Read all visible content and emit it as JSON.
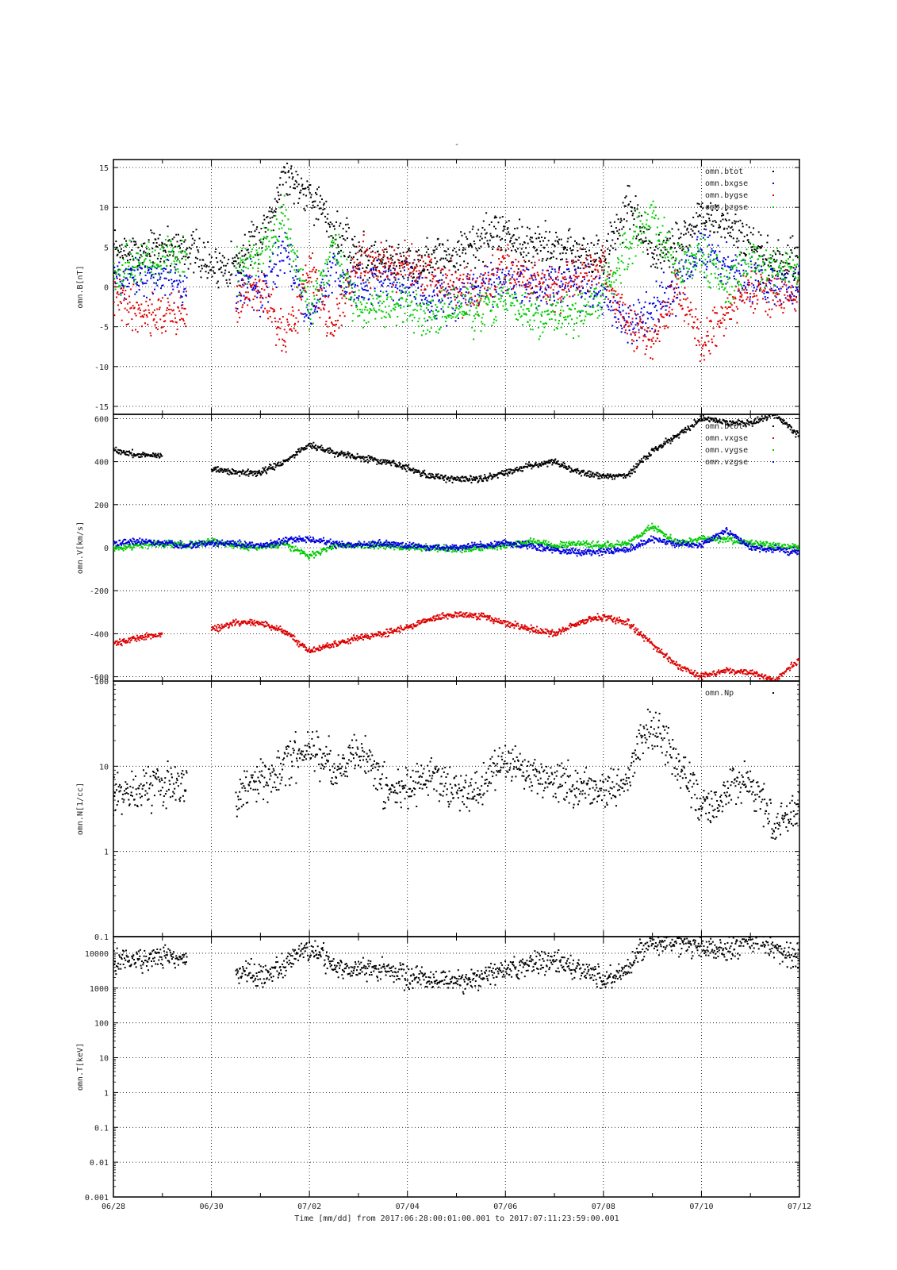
{
  "page_title": "-",
  "x_axis": {
    "tick_labels": [
      "06/28",
      "06/30",
      "07/02",
      "07/04",
      "07/06",
      "07/08",
      "07/10",
      "07/12"
    ],
    "range_days": [
      0,
      14
    ],
    "footer": "Time [mm/dd]  from 2017:06:28:00:01:00.001  to  2017:07:11:23:59:00.001"
  },
  "colors": {
    "black": "#000000",
    "blue": "#0000dd",
    "red": "#dd0000",
    "green": "#00cc00"
  },
  "chart_data": [
    {
      "type": "scatter",
      "ylabel": "omn.B[nT]",
      "ylim": [
        -16,
        16
      ],
      "yticks": [
        -15,
        -10,
        -5,
        0,
        5,
        10,
        15
      ],
      "grid": true,
      "legend_position": "top-right",
      "x": [
        0,
        0.5,
        1,
        1.5,
        2,
        2.5,
        3,
        3.5,
        4,
        4.5,
        5,
        5.5,
        6,
        6.5,
        7,
        7.5,
        8,
        8.5,
        9,
        9.5,
        10,
        10.5,
        11,
        11.5,
        12,
        12.5,
        13,
        13.5,
        14
      ],
      "series": [
        {
          "name": "omn.btot",
          "color": "black",
          "values": [
            4.5,
            4,
            5,
            5,
            2.5,
            3,
            6,
            14,
            12,
            7,
            4,
            3.5,
            3,
            3.5,
            4,
            6,
            7,
            5,
            5,
            4.5,
            3.5,
            10,
            4,
            5,
            9,
            8,
            5,
            3,
            3
          ]
        },
        {
          "name": "omn.bxgse",
          "color": "blue",
          "values": [
            1,
            1.5,
            1,
            0.5,
            null,
            0.5,
            -1,
            5,
            -4,
            2,
            0,
            0.5,
            0.5,
            -1.5,
            -1,
            0,
            1,
            0,
            0.5,
            0,
            -0.5,
            -5,
            -3,
            0,
            5,
            3,
            1,
            0,
            0
          ]
        },
        {
          "name": "omn.bygse",
          "color": "red",
          "values": [
            -1,
            -3,
            -3.5,
            -3,
            null,
            -2,
            0,
            -7,
            2,
            -5,
            3,
            3,
            2.5,
            1,
            0,
            -1,
            3,
            1,
            0,
            1,
            2.5,
            -5,
            -7,
            0,
            -7,
            -3,
            0,
            -1,
            -1
          ]
        },
        {
          "name": "omn.bzgse",
          "color": "green",
          "values": [
            2,
            3,
            3.5,
            3,
            null,
            2,
            4,
            8,
            -3,
            5,
            -3,
            -2.5,
            -2.5,
            -3.5,
            -2.5,
            -3,
            -1,
            -4,
            -3.5,
            -3.5,
            -1,
            5,
            9,
            2,
            4,
            0,
            3,
            2,
            2
          ]
        }
      ]
    },
    {
      "type": "scatter",
      "ylabel": "omn.V[km/s]",
      "ylim": [
        -620,
        620
      ],
      "yticks": [
        -600,
        -400,
        -200,
        0,
        200,
        400,
        600
      ],
      "grid": true,
      "legend_position": "top-right",
      "x": [
        0,
        0.5,
        1,
        1.5,
        2,
        2.5,
        3,
        3.5,
        4,
        4.5,
        5,
        5.5,
        6,
        6.5,
        7,
        7.5,
        8,
        8.5,
        9,
        9.5,
        10,
        10.5,
        11,
        11.5,
        12,
        12.5,
        13,
        13.5,
        14
      ],
      "series": [
        {
          "name": "omn.btot",
          "color": "black",
          "values": [
            455,
            430,
            430,
            null,
            370,
            350,
            350,
            400,
            480,
            440,
            420,
            400,
            370,
            330,
            320,
            320,
            350,
            380,
            400,
            350,
            330,
            340,
            450,
            520,
            600,
            580,
            580,
            620,
            520
          ]
        },
        {
          "name": "omn.vxgse",
          "color": "red",
          "values": [
            -450,
            -420,
            -400,
            null,
            -380,
            -350,
            -350,
            -390,
            -480,
            -450,
            -420,
            -400,
            -370,
            -330,
            -310,
            -320,
            -350,
            -380,
            -400,
            -350,
            -320,
            -350,
            -450,
            -550,
            -600,
            -570,
            -580,
            -620,
            -520
          ]
        },
        {
          "name": "omn.vygse",
          "color": "green",
          "values": [
            0,
            10,
            20,
            10,
            30,
            10,
            0,
            20,
            -40,
            10,
            10,
            10,
            0,
            0,
            -10,
            0,
            10,
            30,
            10,
            20,
            10,
            20,
            100,
            20,
            40,
            40,
            20,
            10,
            0
          ]
        },
        {
          "name": "omn.vzgse",
          "color": "blue",
          "values": [
            20,
            30,
            20,
            10,
            20,
            20,
            10,
            30,
            40,
            20,
            10,
            20,
            10,
            0,
            0,
            10,
            20,
            10,
            -10,
            -20,
            -20,
            -10,
            40,
            20,
            10,
            80,
            0,
            -10,
            -20
          ]
        }
      ]
    },
    {
      "type": "scatter",
      "ylabel": "omn.N[1/cc]",
      "yscale": "log",
      "ylim": [
        0.1,
        100
      ],
      "ytick_labels": [
        "0.1",
        "1",
        "10",
        "100"
      ],
      "grid": true,
      "legend_position": "top-right",
      "x": [
        0,
        0.5,
        1,
        1.5,
        2,
        2.5,
        3,
        3.5,
        4,
        4.5,
        5,
        5.5,
        6,
        6.5,
        7,
        7.5,
        8,
        8.5,
        9,
        9.5,
        10,
        10.5,
        11,
        11.5,
        12,
        12.5,
        13,
        13.5,
        14
      ],
      "series": [
        {
          "name": "omn.Np",
          "color": "black",
          "values": [
            5,
            5,
            6,
            7,
            null,
            4,
            7,
            10,
            18,
            8,
            15,
            6,
            5,
            8,
            5,
            6,
            12,
            8,
            7,
            6,
            5,
            7,
            30,
            10,
            3,
            5,
            6,
            2,
            3
          ]
        }
      ]
    },
    {
      "type": "scatter",
      "ylabel": "omn.T[keV]",
      "yscale": "log",
      "ylim": [
        0.001,
        30000
      ],
      "ytick_labels": [
        "0.001",
        "0.01",
        "0.1",
        "1",
        "10",
        "100",
        "1000",
        "10000"
      ],
      "grid": true,
      "x": [
        0,
        0.5,
        1,
        1.5,
        2,
        2.5,
        3,
        3.5,
        4,
        4.5,
        5,
        5.5,
        6,
        6.5,
        7,
        7.5,
        8,
        8.5,
        9,
        9.5,
        10,
        10.5,
        11,
        11.5,
        12,
        12.5,
        13,
        13.5,
        14
      ],
      "series": [
        {
          "name": "omn.T",
          "color": "black",
          "values": [
            6000,
            6000,
            8000,
            7000,
            null,
            3000,
            2500,
            4000,
            15000,
            3000,
            4000,
            3500,
            2000,
            1800,
            1500,
            2000,
            3500,
            5000,
            6000,
            3000,
            2000,
            3000,
            20000,
            20000,
            15000,
            12000,
            25000,
            12000,
            7000
          ]
        }
      ]
    }
  ]
}
